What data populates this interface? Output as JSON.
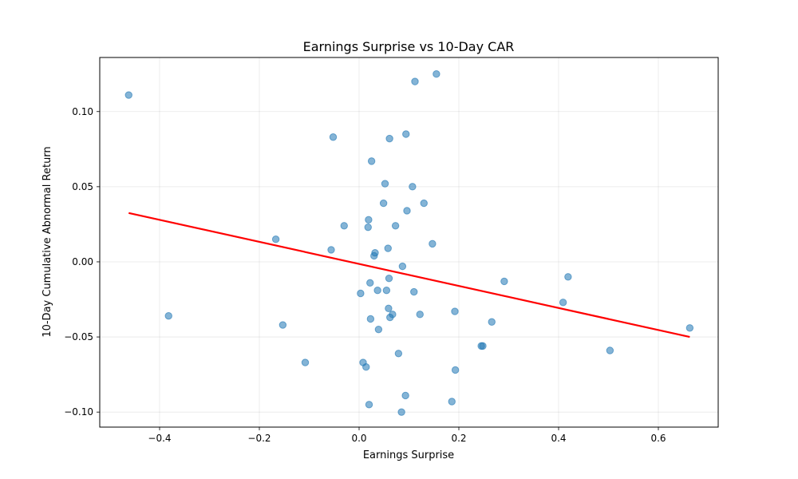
{
  "chart_data": {
    "type": "scatter",
    "title": "Earnings Surprise vs 10-Day CAR",
    "xlabel": "Earnings Surprise",
    "ylabel": "10-Day Cumulative Abnormal Return",
    "xlim": [
      -0.52,
      0.72
    ],
    "ylim": [
      -0.11,
      0.136
    ],
    "xticks": [
      -0.4,
      -0.2,
      0.0,
      0.2,
      0.4,
      0.6
    ],
    "xtick_labels": [
      "−0.4",
      "−0.2",
      "0.0",
      "0.2",
      "0.4",
      "0.6"
    ],
    "yticks": [
      -0.1,
      -0.05,
      0.0,
      0.05,
      0.1
    ],
    "ytick_labels": [
      "−0.10",
      "−0.05",
      "0.00",
      "0.05",
      "0.10"
    ],
    "grid": true,
    "point_color": "#1f77b4",
    "line_color": "#ff0000",
    "points": [
      [
        -0.462,
        0.111
      ],
      [
        -0.382,
        -0.036
      ],
      [
        -0.167,
        0.015
      ],
      [
        -0.153,
        -0.042
      ],
      [
        -0.108,
        -0.067
      ],
      [
        -0.056,
        0.008
      ],
      [
        -0.052,
        0.083
      ],
      [
        -0.03,
        0.024
      ],
      [
        0.003,
        -0.021
      ],
      [
        0.008,
        -0.067
      ],
      [
        0.014,
        -0.07
      ],
      [
        0.018,
        0.023
      ],
      [
        0.019,
        0.028
      ],
      [
        0.02,
        -0.095
      ],
      [
        0.022,
        -0.014
      ],
      [
        0.023,
        -0.038
      ],
      [
        0.025,
        0.067
      ],
      [
        0.03,
        0.004
      ],
      [
        0.032,
        0.006
      ],
      [
        0.037,
        -0.019
      ],
      [
        0.039,
        -0.045
      ],
      [
        0.049,
        0.039
      ],
      [
        0.052,
        0.052
      ],
      [
        0.055,
        -0.019
      ],
      [
        0.058,
        0.009
      ],
      [
        0.059,
        -0.031
      ],
      [
        0.06,
        -0.011
      ],
      [
        0.061,
        0.082
      ],
      [
        0.062,
        -0.037
      ],
      [
        0.067,
        -0.035
      ],
      [
        0.073,
        0.024
      ],
      [
        0.079,
        -0.061
      ],
      [
        0.085,
        -0.1
      ],
      [
        0.087,
        -0.003
      ],
      [
        0.093,
        -0.089
      ],
      [
        0.094,
        0.085
      ],
      [
        0.096,
        0.034
      ],
      [
        0.107,
        0.05
      ],
      [
        0.11,
        -0.02
      ],
      [
        0.112,
        0.12
      ],
      [
        0.122,
        -0.035
      ],
      [
        0.13,
        0.039
      ],
      [
        0.147,
        0.012
      ],
      [
        0.155,
        0.125
      ],
      [
        0.186,
        -0.093
      ],
      [
        0.192,
        -0.033
      ],
      [
        0.193,
        -0.072
      ],
      [
        0.245,
        -0.056
      ],
      [
        0.248,
        -0.056
      ],
      [
        0.266,
        -0.04
      ],
      [
        0.291,
        -0.013
      ],
      [
        0.409,
        -0.027
      ],
      [
        0.419,
        -0.01
      ],
      [
        0.503,
        -0.059
      ],
      [
        0.663,
        -0.044
      ]
    ],
    "fit_line": [
      [
        -0.462,
        0.0325
      ],
      [
        0.663,
        -0.05
      ]
    ]
  }
}
